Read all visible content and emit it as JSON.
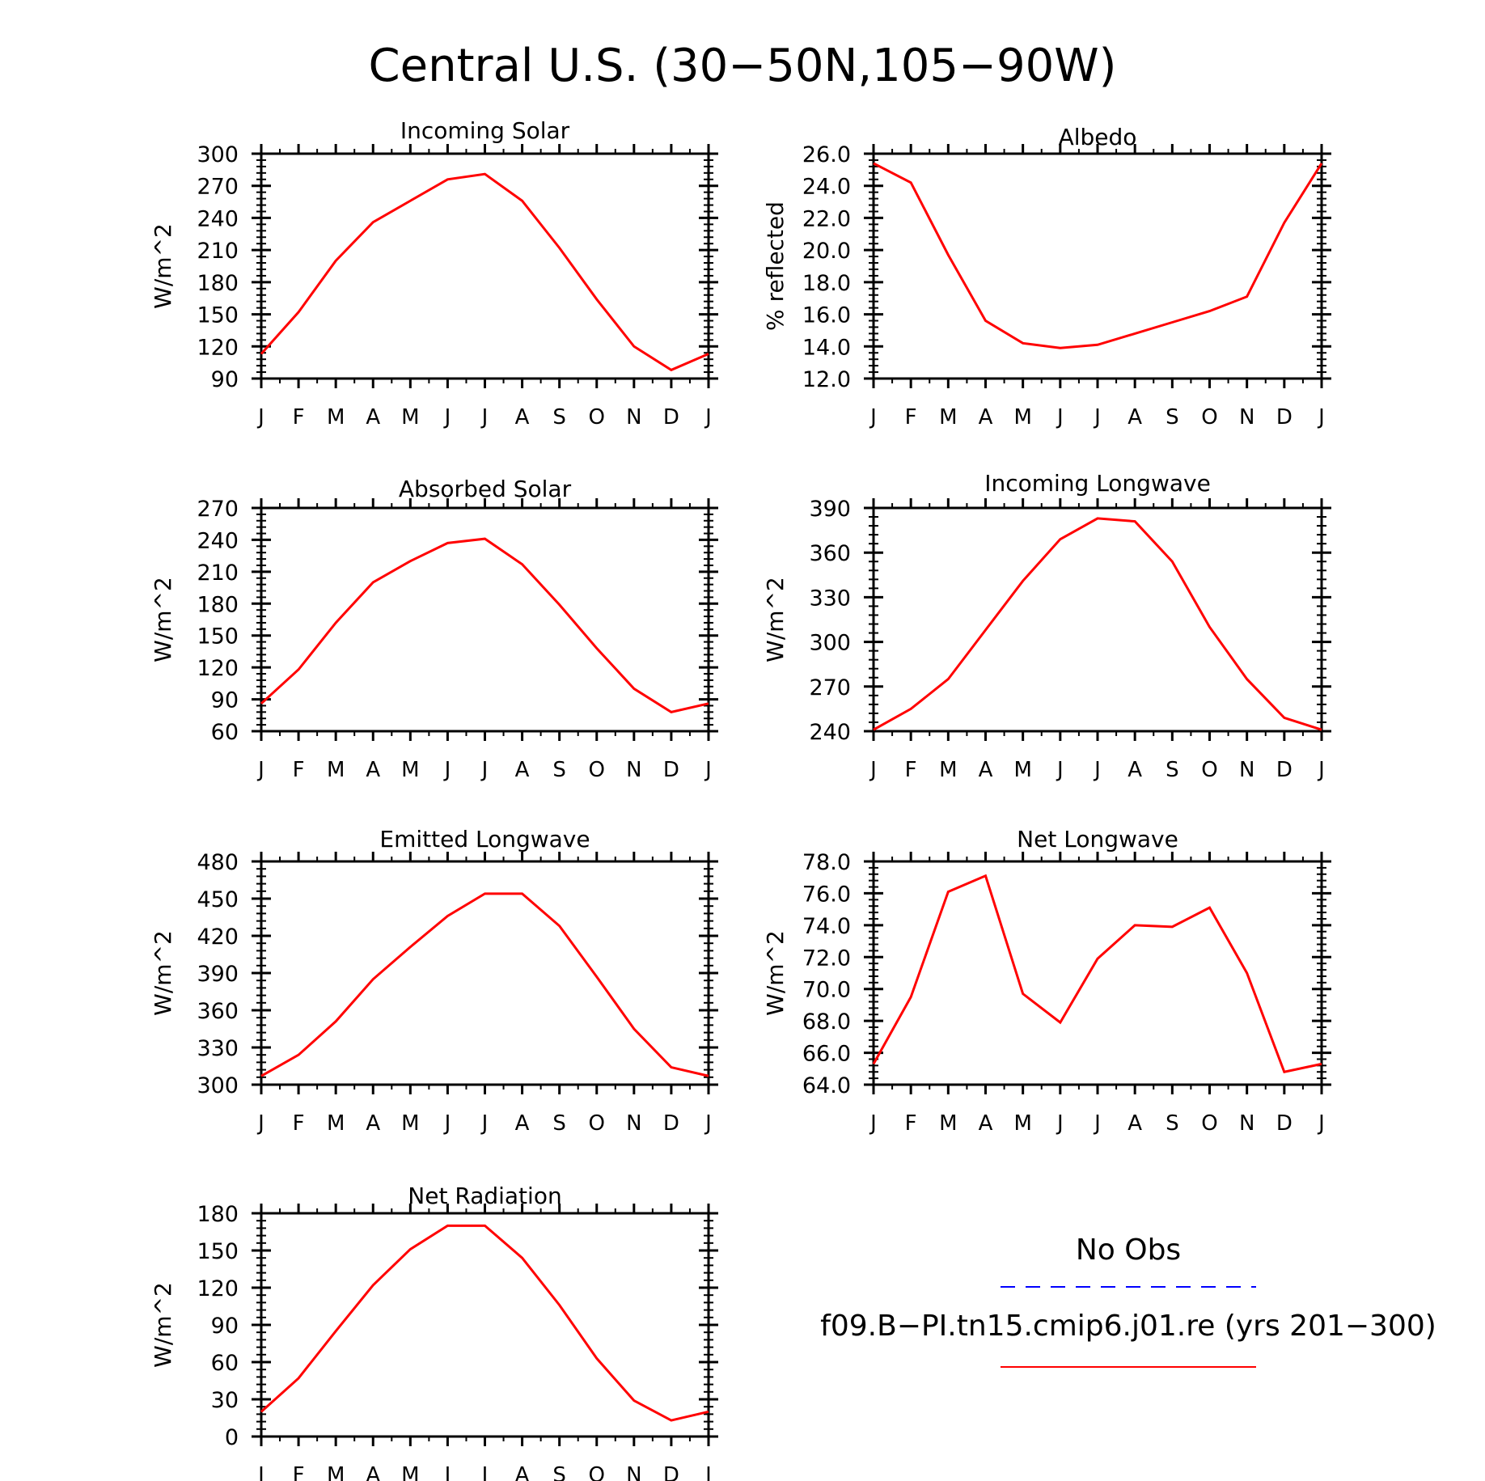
{
  "title": "Central U.S. (30−50N,105−90W)",
  "months": [
    "J",
    "F",
    "M",
    "A",
    "M",
    "J",
    "J",
    "A",
    "S",
    "O",
    "N",
    "D",
    "J"
  ],
  "colors": {
    "model": "#ff0000",
    "obs": "#0000ff",
    "axes": "#000000"
  },
  "legend": {
    "obs_label": "No Obs",
    "model_label": "f09.B−PI.tn15.cmip6.j01.re (yrs 201−300)"
  },
  "chart_data": [
    {
      "type": "line",
      "title": "Incoming Solar",
      "ylabel": "W/m^2",
      "yticks": [
        "90",
        "120",
        "150",
        "180",
        "210",
        "240",
        "270",
        "300"
      ],
      "ylim": [
        90,
        300
      ],
      "series": [
        {
          "values": [
            113,
            152,
            200,
            236,
            256,
            276,
            281,
            256,
            212,
            164,
            120,
            98,
            113
          ]
        }
      ]
    },
    {
      "type": "line",
      "title": "Albedo",
      "ylabel": "% reflected",
      "yticks": [
        "12.0",
        "14.0",
        "16.0",
        "18.0",
        "20.0",
        "22.0",
        "24.0",
        "26.0"
      ],
      "ylim": [
        12,
        26
      ],
      "series": [
        {
          "values": [
            25.4,
            24.2,
            19.7,
            15.6,
            14.2,
            13.9,
            14.1,
            14.8,
            15.5,
            16.2,
            17.1,
            21.7,
            25.4
          ]
        }
      ]
    },
    {
      "type": "line",
      "title": "Absorbed Solar",
      "ylabel": "W/m^2",
      "yticks": [
        "60",
        "90",
        "120",
        "150",
        "180",
        "210",
        "240",
        "270"
      ],
      "ylim": [
        60,
        270
      ],
      "series": [
        {
          "values": [
            86,
            118,
            162,
            200,
            220,
            237,
            241,
            217,
            179,
            138,
            100,
            78,
            86
          ]
        }
      ]
    },
    {
      "type": "line",
      "title": "Incoming Longwave",
      "ylabel": "W/m^2",
      "yticks": [
        "240",
        "270",
        "300",
        "330",
        "360",
        "390"
      ],
      "ylim": [
        240,
        390
      ],
      "series": [
        {
          "values": [
            241,
            255,
            275,
            308,
            341,
            369,
            383,
            381,
            354,
            310,
            275,
            249,
            241
          ]
        }
      ]
    },
    {
      "type": "line",
      "title": "Emitted Longwave",
      "ylabel": "W/m^2",
      "yticks": [
        "300",
        "330",
        "360",
        "390",
        "420",
        "450",
        "480"
      ],
      "ylim": [
        300,
        480
      ],
      "series": [
        {
          "values": [
            307,
            324,
            351,
            385,
            411,
            436,
            454,
            454,
            428,
            387,
            345,
            314,
            307
          ]
        }
      ]
    },
    {
      "type": "line",
      "title": "Net Longwave",
      "ylabel": "W/m^2",
      "yticks": [
        "64.0",
        "66.0",
        "68.0",
        "70.0",
        "72.0",
        "74.0",
        "76.0",
        "78.0"
      ],
      "ylim": [
        64,
        78
      ],
      "series": [
        {
          "values": [
            65.3,
            69.5,
            76.1,
            77.1,
            69.7,
            67.9,
            71.9,
            74.0,
            73.9,
            75.1,
            71.0,
            64.8,
            65.3
          ]
        }
      ]
    },
    {
      "type": "line",
      "title": "Net Radiation",
      "ylabel": "W/m^2",
      "yticks": [
        "0",
        "30",
        "60",
        "90",
        "120",
        "150",
        "180"
      ],
      "ylim": [
        0,
        180
      ],
      "series": [
        {
          "values": [
            20,
            47,
            85,
            122,
            151,
            170,
            170,
            144,
            106,
            63,
            29,
            13,
            20
          ]
        }
      ]
    }
  ]
}
